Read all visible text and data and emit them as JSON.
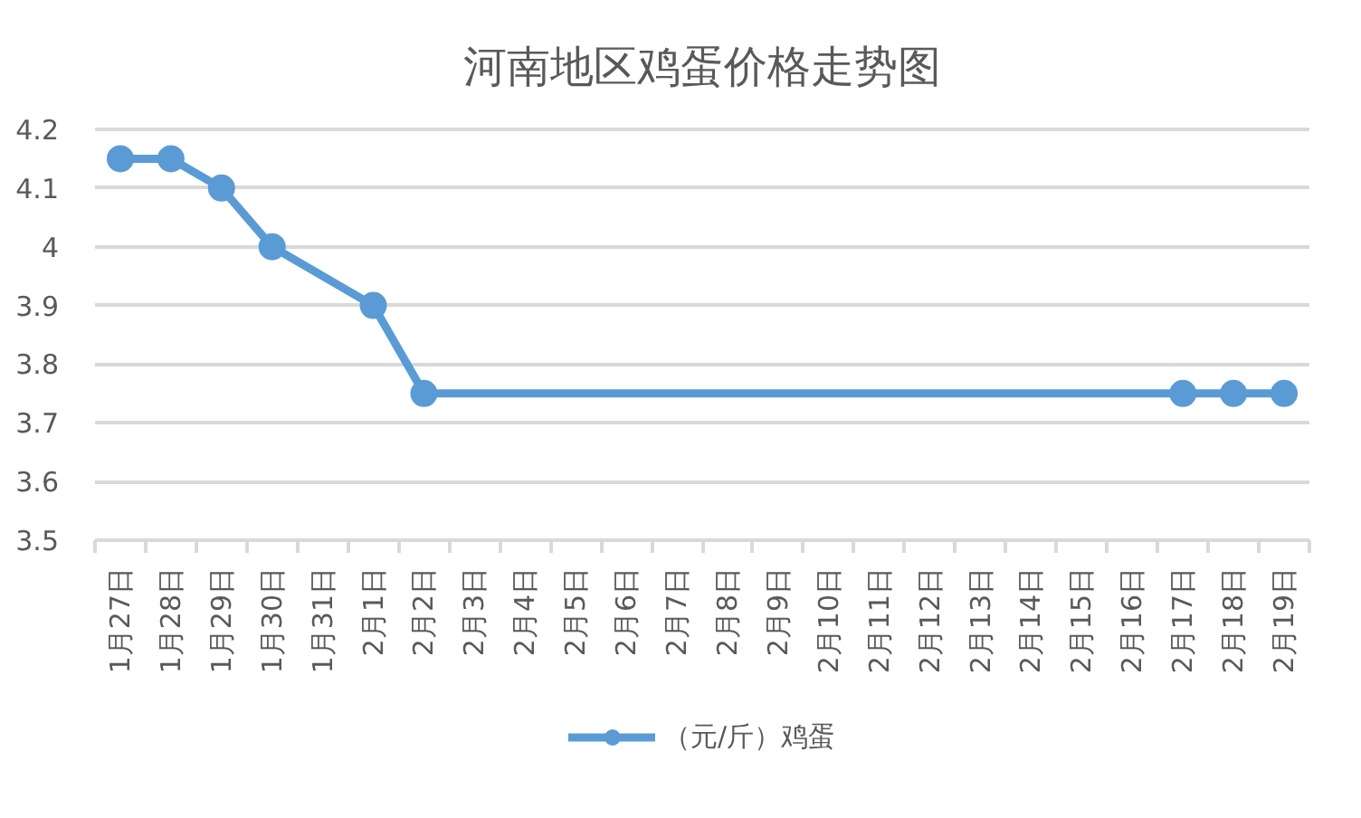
{
  "chart_data": {
    "type": "line",
    "title": "河南地区鸡蛋价格走势图",
    "categories": [
      "1月27日",
      "1月28日",
      "1月29日",
      "1月30日",
      "1月31日",
      "2月1日",
      "2月2日",
      "2月3日",
      "2月4日",
      "2月5日",
      "2月6日",
      "2月7日",
      "2月8日",
      "2月9日",
      "2月10日",
      "2月11日",
      "2月12日",
      "2月13日",
      "2月14日",
      "2月15日",
      "2月16日",
      "2月17日",
      "2月18日",
      "2月19日"
    ],
    "series": [
      {
        "name": "（元/斤）鸡蛋",
        "color": "#5b9bd5",
        "values": [
          4.15,
          4.15,
          4.1,
          4.0,
          null,
          3.9,
          3.75,
          null,
          null,
          null,
          null,
          null,
          null,
          null,
          null,
          null,
          null,
          null,
          null,
          null,
          null,
          3.75,
          3.75,
          3.75
        ]
      }
    ],
    "ylim": [
      3.5,
      4.2
    ],
    "yticks": [
      3.5,
      3.6,
      3.7,
      3.8,
      3.9,
      4,
      4.1,
      4.2
    ],
    "grid": "y",
    "legend": "bottom",
    "marker": "circle",
    "line_style": "solid"
  }
}
